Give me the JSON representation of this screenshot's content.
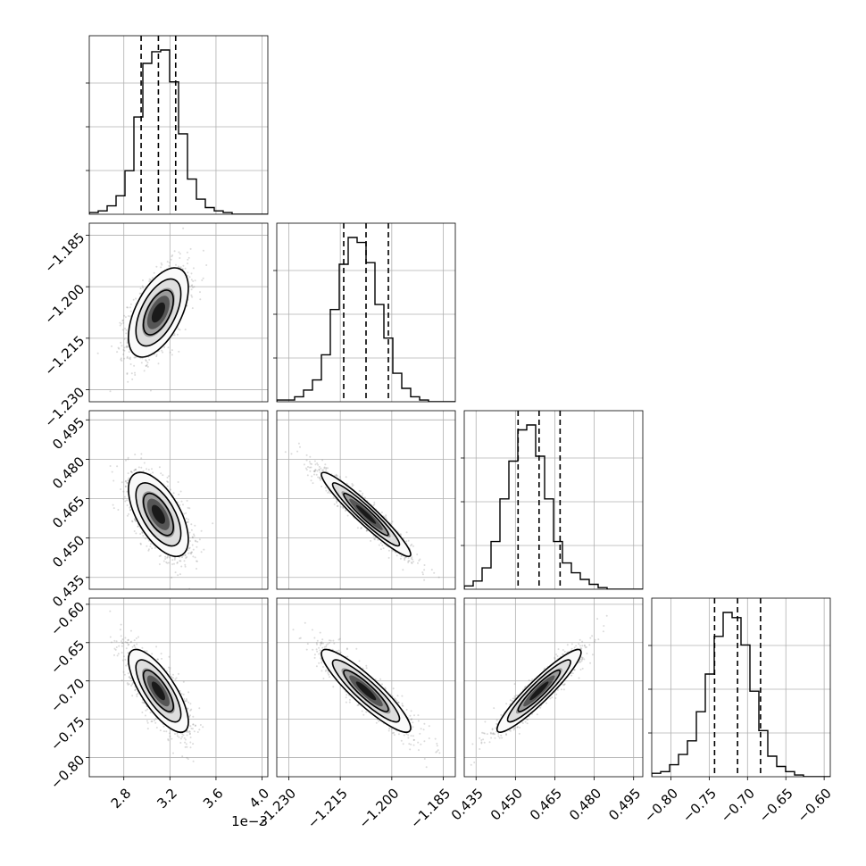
{
  "chart_data": {
    "type": "corner",
    "grid": true,
    "params": [
      {
        "range": [
          2.5,
          4.05
        ],
        "ticks": [
          2.8,
          3.2,
          3.6,
          4.0
        ],
        "tick_labels": [
          "2.8",
          "3.2",
          "3.6",
          "4.0"
        ],
        "offset_text": "1e−3",
        "mean": 3.1,
        "sd": 0.13,
        "q": [
          2.95,
          3.1,
          3.25
        ]
      },
      {
        "range": [
          -1.2335,
          -1.1815
        ],
        "ticks": [
          -1.23,
          -1.215,
          -1.2,
          -1.185
        ],
        "tick_labels": [
          "−1.230",
          "−1.215",
          "−1.200",
          "−1.185"
        ],
        "mean": -1.2075,
        "sd": 0.0065,
        "q": [
          -1.214,
          -1.2075,
          -1.201
        ]
      },
      {
        "range": [
          0.4305,
          0.4985
        ],
        "ticks": [
          0.435,
          0.45,
          0.465,
          0.48,
          0.495
        ],
        "tick_labels": [
          "0.435",
          "0.450",
          "0.465",
          "0.480",
          "0.495"
        ],
        "mean": 0.459,
        "sd": 0.008,
        "q": [
          0.451,
          0.459,
          0.467
        ]
      },
      {
        "range": [
          -0.825,
          -0.592
        ],
        "ticks": [
          -0.6,
          -0.65,
          -0.7,
          -0.75,
          -0.8
        ],
        "tick_labels": [
          "−0.60",
          "−0.65",
          "−0.70",
          "−0.75",
          "−0.80"
        ],
        "mean": -0.713,
        "sd": 0.027,
        "q": [
          -0.743,
          -0.713,
          -0.683
        ]
      }
    ],
    "y_tick_labels": {
      "1": [
        "−1.185",
        "−1.200",
        "−1.215",
        "−1.230"
      ],
      "2": [
        "0.495",
        "0.480",
        "0.465",
        "0.450",
        "0.435"
      ],
      "3": [
        "−0.60",
        "−0.65",
        "−0.70",
        "−0.75",
        "−0.80"
      ]
    },
    "correlations": {
      "1_0": 0.55,
      "2_0": -0.6,
      "2_1": -0.95,
      "3_0": -0.75,
      "3_1": -0.9,
      "3_2": 0.93
    },
    "histograms": [
      {
        "bins": 20,
        "counts": [
          1,
          2,
          5,
          11,
          26,
          58,
          90,
          97,
          98,
          79,
          48,
          21,
          9,
          4,
          2,
          1,
          0,
          0,
          0,
          0
        ]
      },
      {
        "bins": 20,
        "counts": [
          1,
          1,
          3,
          7,
          13,
          28,
          55,
          82,
          98,
          95,
          83,
          58,
          38,
          17,
          8,
          3,
          1,
          0,
          0,
          0
        ]
      },
      {
        "bins": 20,
        "counts": [
          2,
          5,
          13,
          29,
          55,
          78,
          97,
          100,
          81,
          55,
          29,
          16,
          10,
          6,
          3,
          1,
          0,
          0,
          0,
          0
        ]
      },
      {
        "bins": 20,
        "counts": [
          2,
          3,
          7,
          13,
          21,
          38,
          60,
          82,
          96,
          93,
          77,
          50,
          27,
          12,
          6,
          3,
          1,
          0,
          0,
          0
        ]
      }
    ],
    "contour_sigmas": [
      1,
      1.5,
      2
    ],
    "colors": {
      "line": "#000000",
      "grid": "#b0b0b0",
      "scatter": "#7f7f7f"
    }
  }
}
